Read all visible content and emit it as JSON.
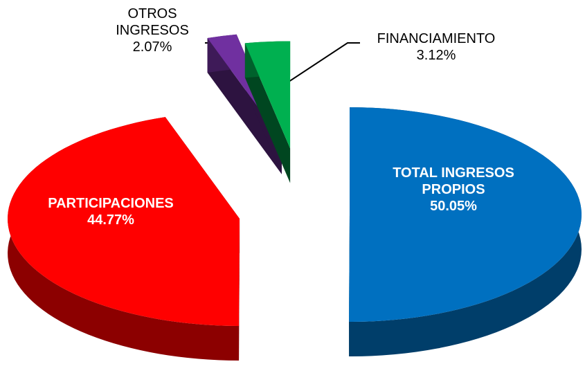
{
  "chart_data": {
    "type": "pie",
    "categories": [
      "TOTAL INGRESOS PROPIOS",
      "PARTICIPACIONES",
      "OTROS INGRESOS",
      "FINANCIAMIENTO"
    ],
    "values": [
      50.05,
      44.77,
      2.07,
      3.12
    ],
    "value_labels": [
      "50.05%",
      "44.77%",
      "2.07%",
      "3.12%"
    ],
    "colors": [
      "#0070c0",
      "#ff0000",
      "#7030a0",
      "#00b050"
    ]
  }
}
